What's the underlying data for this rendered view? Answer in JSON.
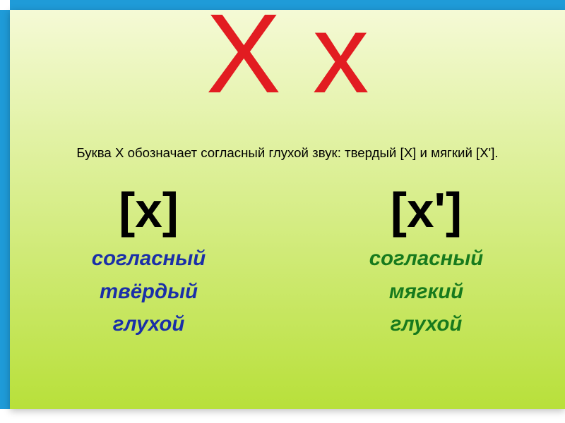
{
  "layout": {
    "border_color": "#1f9bd8",
    "background_gradient": {
      "top": "#f5fad6",
      "bottom": "#b8e03a"
    }
  },
  "title": {
    "text": "Х х",
    "color": "#e21c21",
    "fontsize_pt": 120
  },
  "subtitle": {
    "text": "Буква Х обозначает согласный глухой звук: твердый [Х] и мягкий [Х'].",
    "fontsize_pt": 14,
    "color": "#000000"
  },
  "sound_fontsize_pt": 52,
  "prop_fontsize_pt": 22,
  "hard": {
    "sound": "[х]",
    "color": "#1a2fa8",
    "props": [
      "согласный",
      "твёрдый",
      "глухой"
    ]
  },
  "soft": {
    "sound": "[х']",
    "color": "#177a1d",
    "props": [
      "согласный",
      "мягкий",
      "глухой"
    ]
  }
}
